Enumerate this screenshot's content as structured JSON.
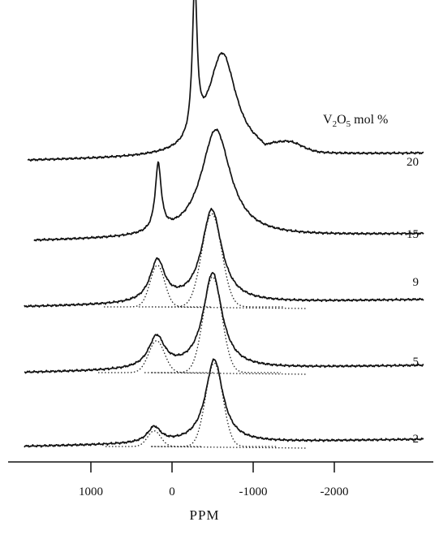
{
  "chart_data": {
    "type": "line",
    "title": "",
    "xlabel": "PPM",
    "ylabel": "",
    "xlim": [
      1900,
      -3100
    ],
    "x_reversed": true,
    "grid": false,
    "x_ticks": [
      1000,
      0,
      -1000,
      -2000
    ],
    "x_tick_labels": [
      "1000",
      "0",
      "-1000",
      "-2000"
    ],
    "legend_title": {
      "main": "V",
      "sub1": "2",
      "mid": "O",
      "sub2": "5",
      "rest": " mol %"
    },
    "series": [
      {
        "name": "20",
        "peaks": [
          {
            "center": -280,
            "height": 1.0,
            "width": 35
          },
          {
            "center": -620,
            "height": 0.68,
            "width": 210
          }
        ]
      },
      {
        "name": "15",
        "peaks": [
          {
            "center": 170,
            "height": 0.47,
            "width": 45
          },
          {
            "center": -540,
            "height": 0.76,
            "width": 220
          }
        ]
      },
      {
        "name": "9",
        "peaks": [
          {
            "center": 180,
            "height": 0.42,
            "width": 110
          },
          {
            "center": -490,
            "height": 0.94,
            "width": 150
          }
        ]
      },
      {
        "name": "5",
        "peaks": [
          {
            "center": 190,
            "height": 0.33,
            "width": 120
          },
          {
            "center": -500,
            "height": 0.99,
            "width": 140
          }
        ]
      },
      {
        "name": "2",
        "peaks": [
          {
            "center": 220,
            "height": 0.18,
            "width": 100
          },
          {
            "center": -520,
            "height": 0.96,
            "width": 130
          }
        ]
      }
    ],
    "fit_components": [
      {
        "series": "9",
        "peaks": [
          {
            "center": 180,
            "height": 0.42,
            "width": 110
          },
          {
            "center": -490,
            "height": 0.94,
            "width": 150
          }
        ]
      },
      {
        "series": "5",
        "peaks": [
          {
            "center": 190,
            "height": 0.33,
            "width": 120
          },
          {
            "center": -500,
            "height": 0.99,
            "width": 140
          }
        ]
      },
      {
        "series": "2",
        "peaks": [
          {
            "center": 220,
            "height": 0.18,
            "width": 100
          },
          {
            "center": -520,
            "height": 0.96,
            "width": 130
          }
        ]
      }
    ]
  }
}
